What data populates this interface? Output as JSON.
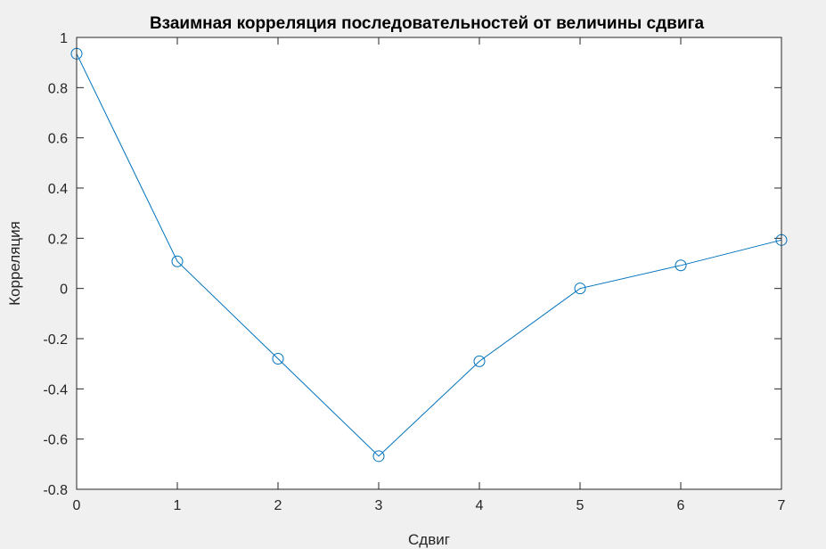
{
  "chart_data": {
    "type": "line",
    "title": "Взаимная корреляция последовательностей от величины сдвига",
    "xlabel": "Сдвиг",
    "ylabel": "Корреляция",
    "xlim": [
      0,
      7
    ],
    "ylim": [
      -0.8,
      1
    ],
    "x_ticks": [
      0,
      1,
      2,
      3,
      4,
      5,
      6,
      7
    ],
    "y_ticks": [
      -0.8,
      -0.6,
      -0.4,
      -0.2,
      0,
      0.2,
      0.4,
      0.6,
      0.8,
      1
    ],
    "y_tick_labels": [
      "-0.8",
      "-0.6",
      "-0.4",
      "-0.2",
      "0",
      "0.2",
      "0.4",
      "0.6",
      "0.8",
      "1"
    ],
    "grid": false,
    "marker": "circle",
    "series": [
      {
        "color": "#0072BD",
        "x": [
          0,
          1,
          2,
          3,
          4,
          5,
          6,
          7
        ],
        "values": [
          0.935,
          0.108,
          -0.28,
          -0.668,
          -0.29,
          0.0,
          0.092,
          0.193
        ]
      }
    ]
  }
}
